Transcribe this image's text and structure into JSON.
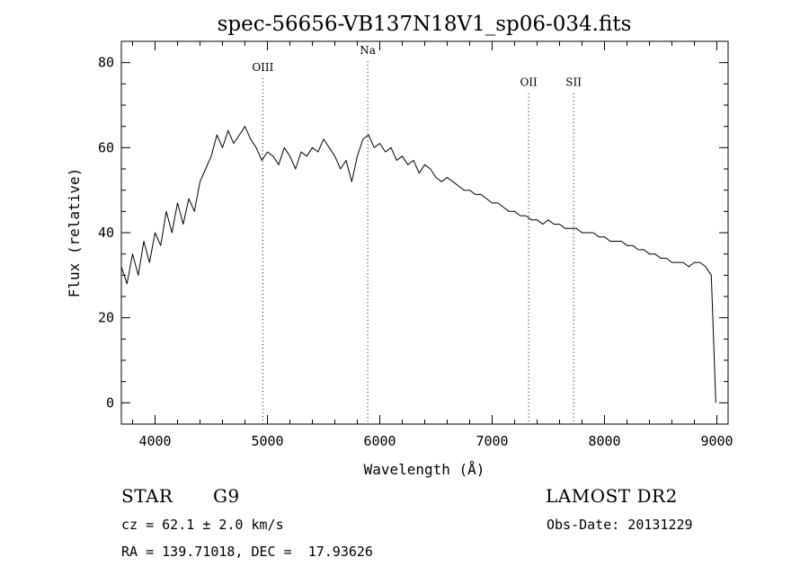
{
  "chart_data": {
    "type": "line",
    "title": "spec-56656-VB137N18V1_sp06-034.fits",
    "xlabel": "Wavelength (Å)",
    "ylabel": "Flux (relative)",
    "xlim": [
      3700,
      9100
    ],
    "ylim": [
      -5,
      85
    ],
    "xticks": [
      4000,
      5000,
      6000,
      7000,
      8000,
      9000
    ],
    "yticks": [
      0,
      20,
      40,
      60,
      80
    ],
    "grid": false,
    "line_markers": [
      {
        "label": "OIII",
        "x": 4959,
        "label_y": 78
      },
      {
        "label": "Na",
        "x": 5893,
        "label_y": 82
      },
      {
        "label": "OII",
        "x": 7325,
        "label_y": 74.5
      },
      {
        "label": "SII",
        "x": 7725,
        "label_y": 74.5
      }
    ],
    "x": [
      3700,
      3750,
      3800,
      3850,
      3900,
      3950,
      4000,
      4050,
      4100,
      4150,
      4200,
      4250,
      4300,
      4350,
      4400,
      4450,
      4500,
      4550,
      4600,
      4650,
      4700,
      4750,
      4800,
      4850,
      4900,
      4950,
      5000,
      5050,
      5100,
      5150,
      5200,
      5250,
      5300,
      5350,
      5400,
      5450,
      5500,
      5550,
      5600,
      5650,
      5700,
      5750,
      5800,
      5850,
      5900,
      5950,
      6000,
      6050,
      6100,
      6150,
      6200,
      6250,
      6300,
      6350,
      6400,
      6450,
      6500,
      6550,
      6600,
      6650,
      6700,
      6750,
      6800,
      6850,
      6900,
      6950,
      7000,
      7050,
      7100,
      7150,
      7200,
      7250,
      7300,
      7350,
      7400,
      7450,
      7500,
      7550,
      7600,
      7650,
      7700,
      7750,
      7800,
      7850,
      7900,
      7950,
      8000,
      8050,
      8100,
      8150,
      8200,
      8250,
      8300,
      8350,
      8400,
      8450,
      8500,
      8550,
      8600,
      8650,
      8700,
      8750,
      8800,
      8850,
      8900,
      8950,
      8990
    ],
    "y": [
      32,
      28,
      35,
      30,
      38,
      33,
      40,
      37,
      45,
      40,
      47,
      42,
      48,
      45,
      52,
      55,
      58,
      63,
      60,
      64,
      61,
      63,
      65,
      62,
      60,
      57,
      59,
      58,
      56,
      60,
      58,
      55,
      59,
      58,
      60,
      59,
      62,
      60,
      58,
      55,
      57,
      52,
      58,
      62,
      63,
      60,
      61,
      59,
      60,
      57,
      58,
      56,
      57,
      54,
      56,
      55,
      53,
      52,
      53,
      52,
      51,
      50,
      50,
      49,
      49,
      48,
      47,
      47,
      46,
      45,
      45,
      44,
      44,
      43,
      43,
      42,
      43,
      42,
      42,
      41,
      41,
      41,
      40,
      40,
      40,
      39,
      39,
      38,
      38,
      38,
      37,
      37,
      36,
      36,
      35,
      35,
      34,
      34,
      33,
      33,
      33,
      32,
      33,
      33,
      32,
      30,
      0
    ]
  },
  "info": {
    "class_label": "STAR",
    "subclass": "G9",
    "survey": "LAMOST DR2",
    "cz_line": "cz = 62.1 ± 2.0 km/s",
    "obs_date": "Obs-Date: 20131229",
    "radec_line": "RA = 139.71018, DEC =  17.93626"
  }
}
